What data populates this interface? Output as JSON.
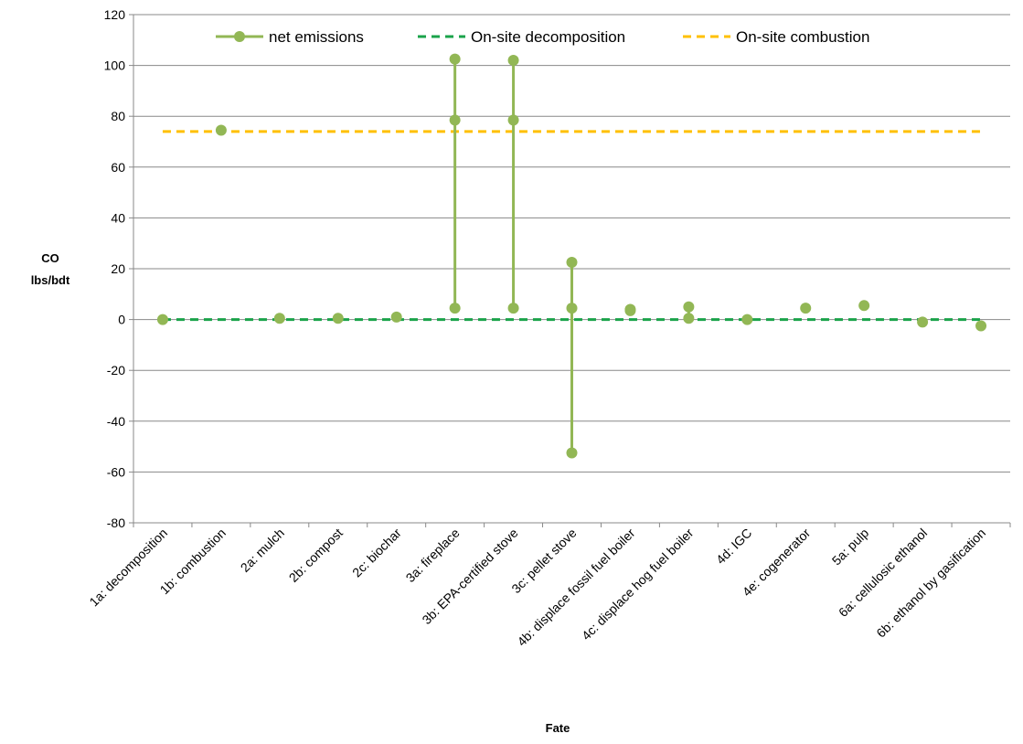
{
  "chart_data": {
    "type": "line",
    "title": "",
    "xlabel": "Fate",
    "ylabel_line1": "CO",
    "ylabel_line2": "lbs/bdt",
    "ylim": [
      -80,
      120
    ],
    "ytick_step": 20,
    "grid": "horizontal",
    "legend_position": "top",
    "categories": [
      "1a: decomposition",
      "1b: combustion",
      "2a: mulch",
      "2b: compost",
      "2c: biochar",
      "3a: fireplace",
      "3b: EPA-certified stove",
      "3c: pellet stove",
      "4b: displace fossil fuel boiler",
      "4c: displace hog fuel boiler",
      "4d: IGC",
      "4e: cogenerator",
      "5a: pulp",
      "6a: cellulosic ethanol",
      "6b: ethanol by gasification"
    ],
    "series": [
      {
        "name": "net emissions",
        "color": "#92b755",
        "values": [
          [
            0
          ],
          [
            74.5
          ],
          [
            0.5
          ],
          [
            0.5
          ],
          [
            1
          ],
          [
            4.5,
            78.5,
            102.5
          ],
          [
            4.5,
            78.5,
            102
          ],
          [
            -52.5,
            4.5,
            22.5
          ],
          [
            3.5,
            4
          ],
          [
            0.5,
            5
          ],
          [
            0
          ],
          [
            4.5
          ],
          [
            5.5
          ],
          [
            -1
          ],
          [
            -2.5
          ]
        ]
      },
      {
        "name": "On-site decomposition",
        "color": "#1aa34a",
        "value": 0
      },
      {
        "name": "On-site combustion",
        "color": "#ffc000",
        "value": 74
      }
    ]
  }
}
